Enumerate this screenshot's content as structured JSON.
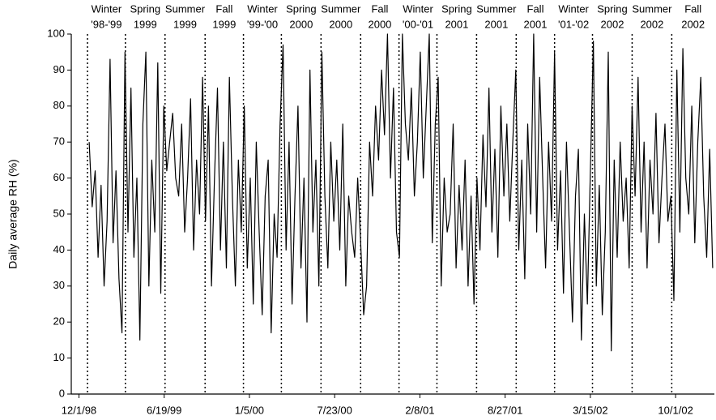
{
  "chart_data": {
    "type": "line",
    "ylabel": "Daily average RH (%)",
    "color": "#000000",
    "xlim": [
      "11/13/98",
      "12/31/02"
    ],
    "xticks": [
      "12/1/98",
      "6/19/99",
      "1/5/00",
      "7/23/00",
      "2/8/01",
      "8/27/01",
      "3/15/02",
      "10/1/02"
    ],
    "ylim": [
      0,
      100
    ],
    "yticks": [
      0,
      10,
      20,
      30,
      40,
      50,
      60,
      70,
      80,
      90,
      100
    ],
    "seasons": [
      {
        "label": [
          "Winter",
          "'98-'99"
        ],
        "start": "12/21/98"
      },
      {
        "label": [
          "Spring",
          "1999"
        ],
        "start": "3/20/99"
      },
      {
        "label": [
          "Summer",
          "1999"
        ],
        "start": "6/21/99"
      },
      {
        "label": [
          "Fall",
          "1999"
        ],
        "start": "9/23/99"
      },
      {
        "label": [
          "Winter",
          "'99-'00"
        ],
        "start": "12/22/99"
      },
      {
        "label": [
          "Spring",
          "2000"
        ],
        "start": "3/20/00"
      },
      {
        "label": [
          "Summer",
          "2000"
        ],
        "start": "6/21/00"
      },
      {
        "label": [
          "Fall",
          "2000"
        ],
        "start": "9/22/00"
      },
      {
        "label": [
          "Winter",
          "'00-'01"
        ],
        "start": "12/21/00"
      },
      {
        "label": [
          "Spring",
          "2001"
        ],
        "start": "3/20/01"
      },
      {
        "label": [
          "Summer",
          "2001"
        ],
        "start": "6/21/01"
      },
      {
        "label": [
          "Fall",
          "2001"
        ],
        "start": "9/22/01"
      },
      {
        "label": [
          "Winter",
          "'01-'02"
        ],
        "start": "12/21/01"
      },
      {
        "label": [
          "Spring",
          "2002"
        ],
        "start": "3/20/02"
      },
      {
        "label": [
          "Summer",
          "2002"
        ],
        "start": "6/21/02"
      },
      {
        "label": [
          "Fall",
          "2002"
        ],
        "start": "9/22/02"
      }
    ],
    "x": [
      "12/25/98",
      "1/1/99",
      "1/8/99",
      "1/15/99",
      "1/22/99",
      "1/29/99",
      "2/5/99",
      "2/12/99",
      "2/19/99",
      "2/26/99",
      "3/5/99",
      "3/12/99",
      "3/19/99",
      "3/26/99",
      "4/2/99",
      "4/9/99",
      "4/16/99",
      "4/23/99",
      "4/30/99",
      "5/7/99",
      "5/14/99",
      "5/21/99",
      "5/28/99",
      "6/4/99",
      "6/11/99",
      "6/18/99",
      "6/25/99",
      "7/2/99",
      "7/9/99",
      "7/16/99",
      "7/23/99",
      "7/30/99",
      "8/6/99",
      "8/13/99",
      "8/20/99",
      "8/27/99",
      "9/3/99",
      "9/10/99",
      "9/17/99",
      "9/24/99",
      "10/1/99",
      "10/8/99",
      "10/15/99",
      "10/22/99",
      "10/29/99",
      "11/5/99",
      "11/12/99",
      "11/19/99",
      "11/26/99",
      "12/3/99",
      "12/10/99",
      "12/17/99",
      "12/24/99",
      "12/31/99",
      "1/7/00",
      "1/14/00",
      "1/21/00",
      "1/28/00",
      "2/4/00",
      "2/11/00",
      "2/18/00",
      "2/25/00",
      "3/3/00",
      "3/10/00",
      "3/17/00",
      "3/24/00",
      "3/31/00",
      "4/7/00",
      "4/14/00",
      "4/21/00",
      "4/28/00",
      "5/5/00",
      "5/12/00",
      "5/19/00",
      "5/26/00",
      "6/2/00",
      "6/9/00",
      "6/16/00",
      "6/23/00",
      "6/30/00",
      "7/7/00",
      "7/14/00",
      "7/21/00",
      "7/28/00",
      "8/4/00",
      "8/11/00",
      "8/18/00",
      "8/25/00",
      "9/1/00",
      "9/8/00",
      "9/15/00",
      "9/22/00",
      "9/29/00",
      "10/6/00",
      "10/13/00",
      "10/20/00",
      "10/27/00",
      "11/3/00",
      "11/10/00",
      "11/17/00",
      "11/24/00",
      "12/1/00",
      "12/8/00",
      "12/15/00",
      "12/22/00",
      "12/29/00",
      "1/5/01",
      "1/12/01",
      "1/19/01",
      "1/26/01",
      "2/2/01",
      "2/9/01",
      "2/16/01",
      "2/23/01",
      "3/2/01",
      "3/9/01",
      "3/16/01",
      "3/23/01",
      "3/30/01",
      "4/6/01",
      "4/13/01",
      "4/20/01",
      "4/27/01",
      "5/4/01",
      "5/11/01",
      "5/18/01",
      "5/25/01",
      "6/1/01",
      "6/8/01",
      "6/15/01",
      "6/22/01",
      "6/29/01",
      "7/6/01",
      "7/13/01",
      "7/20/01",
      "7/27/01",
      "8/3/01",
      "8/10/01",
      "8/17/01",
      "8/24/01",
      "8/31/01",
      "9/7/01",
      "9/14/01",
      "9/21/01",
      "9/28/01",
      "10/5/01",
      "10/12/01",
      "10/19/01",
      "10/26/01",
      "11/2/01",
      "11/9/01",
      "11/16/01",
      "11/23/01",
      "11/30/01",
      "12/7/01",
      "12/14/01",
      "12/21/01",
      "12/28/01",
      "1/4/02",
      "1/11/02",
      "1/18/02",
      "1/25/02",
      "2/1/02",
      "2/8/02",
      "2/15/02",
      "2/22/02",
      "3/1/02",
      "3/8/02",
      "3/15/02",
      "3/22/02",
      "3/29/02",
      "4/5/02",
      "4/12/02",
      "4/19/02",
      "4/26/02",
      "5/3/02",
      "5/10/02",
      "5/17/02",
      "5/24/02",
      "5/31/02",
      "6/7/02",
      "6/14/02",
      "6/21/02",
      "6/28/02",
      "7/5/02",
      "7/12/02",
      "7/19/02",
      "7/26/02",
      "8/2/02",
      "8/9/02",
      "8/16/02",
      "8/23/02",
      "8/30/02",
      "9/6/02",
      "9/13/02",
      "9/20/02",
      "9/27/02",
      "10/4/02",
      "10/11/02",
      "10/18/02",
      "10/25/02",
      "11/1/02",
      "11/8/02",
      "11/15/02",
      "11/22/02",
      "11/29/02",
      "12/6/02",
      "12/13/02",
      "12/20/02",
      "12/27/02"
    ],
    "values": [
      70,
      52,
      62,
      38,
      58,
      30,
      48,
      93,
      42,
      62,
      32,
      17,
      95,
      45,
      85,
      38,
      60,
      15,
      75,
      95,
      30,
      65,
      45,
      92,
      28,
      80,
      62,
      70,
      78,
      60,
      55,
      75,
      45,
      60,
      82,
      40,
      65,
      50,
      88,
      48,
      80,
      30,
      60,
      85,
      40,
      70,
      35,
      88,
      55,
      30,
      65,
      45,
      80,
      35,
      60,
      25,
      70,
      45,
      22,
      55,
      65,
      17,
      50,
      38,
      75,
      97,
      40,
      70,
      25,
      55,
      80,
      35,
      60,
      20,
      90,
      45,
      65,
      30,
      95,
      55,
      35,
      70,
      48,
      65,
      40,
      75,
      30,
      55,
      45,
      38,
      60,
      42,
      22,
      30,
      70,
      55,
      80,
      65,
      90,
      72,
      100,
      60,
      85,
      45,
      38,
      100,
      75,
      65,
      85,
      55,
      70,
      95,
      60,
      80,
      100,
      42,
      75,
      88,
      30,
      60,
      45,
      50,
      75,
      35,
      58,
      40,
      65,
      30,
      55,
      25,
      60,
      40,
      72,
      52,
      85,
      45,
      68,
      38,
      80,
      55,
      75,
      48,
      70,
      90,
      40,
      65,
      32,
      75,
      50,
      100,
      45,
      88,
      60,
      35,
      70,
      48,
      95,
      40,
      62,
      28,
      70,
      45,
      20,
      55,
      68,
      15,
      50,
      25,
      62,
      98,
      30,
      58,
      22,
      45,
      95,
      12,
      65,
      38,
      70,
      48,
      60,
      35,
      80,
      55,
      88,
      45,
      70,
      35,
      65,
      50,
      78,
      42,
      60,
      75,
      48,
      55,
      26,
      90,
      45,
      96,
      60,
      50,
      80,
      42,
      70,
      88,
      55,
      38,
      68,
      35
    ]
  }
}
